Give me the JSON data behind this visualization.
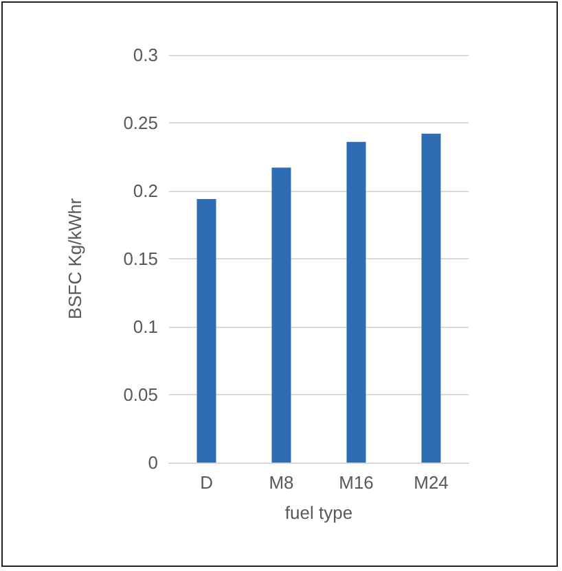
{
  "chart_data": {
    "type": "bar",
    "xlabel": "fuel type",
    "ylabel": "BSFC Kg/kWhr",
    "categories": [
      "D",
      "M8",
      "M16",
      "M24"
    ],
    "values": [
      0.194,
      0.217,
      0.236,
      0.242
    ],
    "color": "#2e6db4",
    "ylim": [
      0,
      0.3
    ],
    "yticks": [
      0,
      0.05,
      0.1,
      0.15,
      0.2,
      0.25,
      0.3
    ],
    "grid": "y"
  }
}
